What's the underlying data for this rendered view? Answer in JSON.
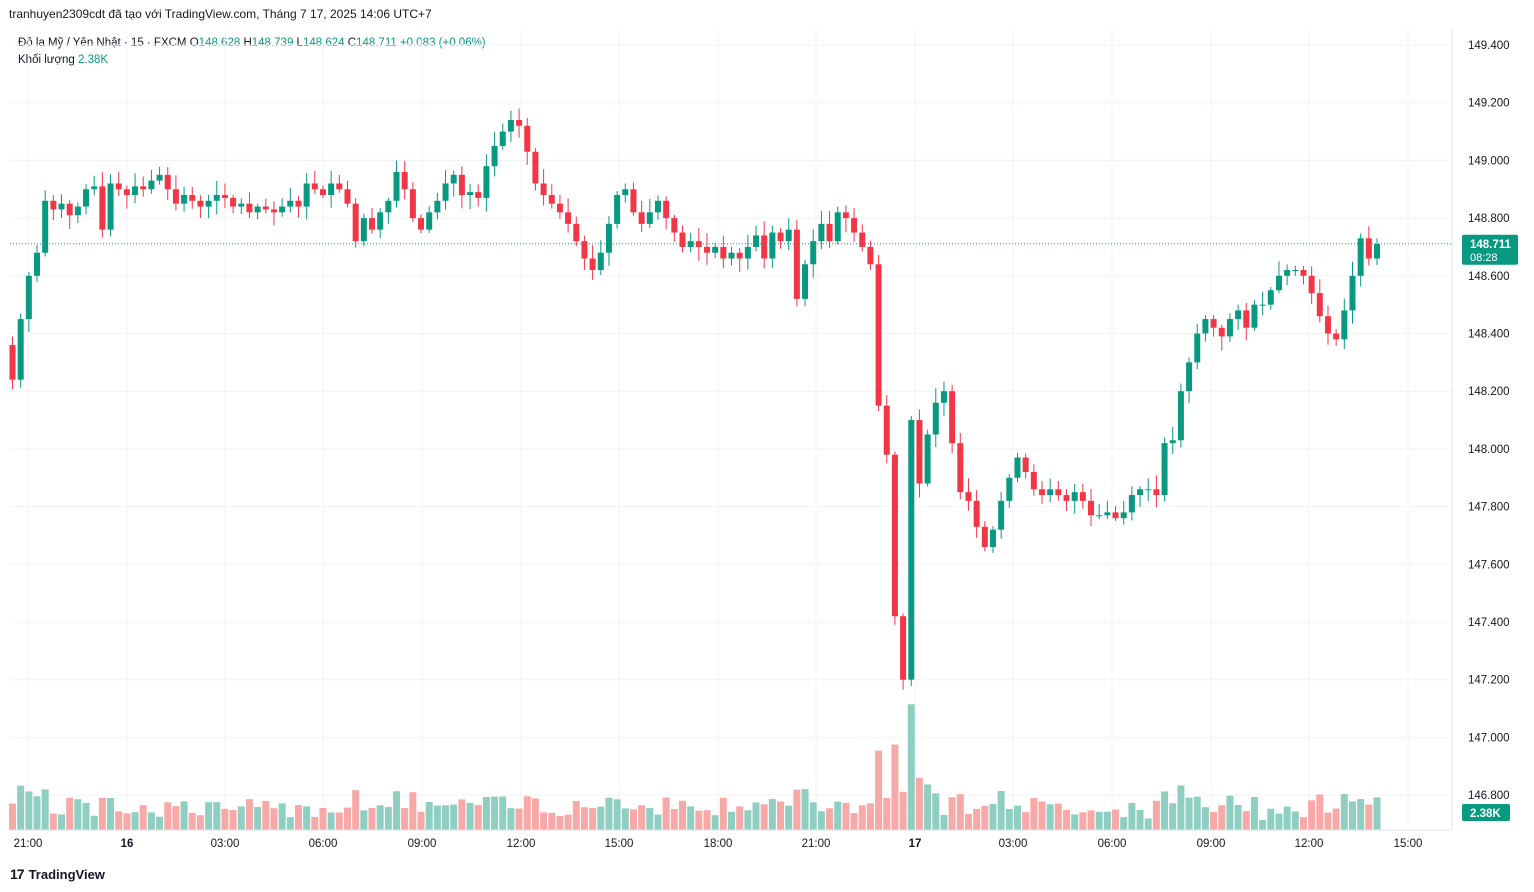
{
  "header": {
    "attribution": "tranhuyen2309cdt đã tạo với TradingView.com, Tháng 7 17, 2025 14:06 UTC+7"
  },
  "legend": {
    "symbol": "Đô la Mỹ / Yên Nhật · 15 · FXCM",
    "o_label": "O",
    "o": "148.628",
    "h_label": "H",
    "h": "148.739",
    "l_label": "L",
    "l": "148.624",
    "c_label": "C",
    "c": "148.711",
    "change": "+0.083 (+0.06%)",
    "volume_label": "Khối lượng",
    "volume_value": "2.38K"
  },
  "price_axis": {
    "ticks": [
      "149.400",
      "149.200",
      "149.000",
      "148.800",
      "148.600",
      "148.400",
      "148.200",
      "148.000",
      "147.800",
      "147.600",
      "147.400",
      "147.200",
      "147.000",
      "146.800"
    ],
    "last_price": "148.711",
    "countdown": "08:28",
    "volume_badge": "2.38K"
  },
  "time_axis": {
    "ticks": [
      "21:00",
      "16",
      "03:00",
      "06:00",
      "09:00",
      "12:00",
      "15:00",
      "18:00",
      "21:00",
      "17",
      "03:00",
      "06:00",
      "09:00",
      "12:00",
      "15:00"
    ]
  },
  "branding": {
    "name": "TradingView"
  },
  "colors": {
    "up": "#089981",
    "down": "#f23645",
    "vol_up": "#8fcfc2",
    "vol_down": "#f7a9a7",
    "grid": "#f0f3fa"
  },
  "chart_data": {
    "type": "candlestick",
    "interval": "15",
    "ylim": [
      146.7,
      149.45
    ],
    "series_closes_approx": [
      148.24,
      148.45,
      148.6,
      148.68,
      148.86,
      148.83,
      148.85,
      148.81,
      148.84,
      148.9,
      148.91,
      148.76,
      148.92,
      148.9,
      148.88,
      148.91,
      148.9,
      148.93,
      148.95,
      148.9,
      148.85,
      148.88,
      148.86,
      148.84,
      148.86,
      148.88,
      148.87,
      148.84,
      148.85,
      148.82,
      148.84,
      148.83,
      148.82,
      148.84,
      148.86,
      148.84,
      148.92,
      148.9,
      148.88,
      148.92,
      148.9,
      148.85,
      148.72,
      148.8,
      148.76,
      148.82,
      148.86,
      148.96,
      148.9,
      148.8,
      148.76,
      148.82,
      148.86,
      148.92,
      148.95,
      148.88,
      148.89,
      148.87,
      148.98,
      149.05,
      149.1,
      149.14,
      149.12,
      149.03,
      148.92,
      148.88,
      148.85,
      148.82,
      148.78,
      148.72,
      148.66,
      148.62,
      148.68,
      148.78,
      148.88,
      148.9,
      148.82,
      148.78,
      148.82,
      148.86,
      148.8,
      148.75,
      148.7,
      148.72,
      148.7,
      148.68,
      148.7,
      148.66,
      148.68,
      148.66,
      148.7,
      148.74,
      148.66,
      148.75,
      148.72,
      148.76,
      148.52,
      148.64,
      148.72,
      148.78,
      148.72,
      148.82,
      148.8,
      148.75,
      148.7,
      148.64,
      148.15,
      147.98,
      147.42,
      147.2,
      148.1,
      147.88,
      148.05,
      148.16,
      148.2,
      148.02,
      147.85,
      147.82,
      147.73,
      147.66,
      147.72,
      147.82,
      147.9,
      147.97,
      147.92,
      147.86,
      147.84,
      147.86,
      147.84,
      147.82,
      147.85,
      147.82,
      147.77,
      147.77,
      147.78,
      147.76,
      147.78,
      147.84,
      147.86,
      147.86,
      147.84,
      148.02,
      148.03,
      148.2,
      148.3,
      148.4,
      148.45,
      148.42,
      148.39,
      148.45,
      148.48,
      148.42,
      148.5,
      148.5,
      148.55,
      148.6,
      148.62,
      148.62,
      148.6,
      148.54,
      148.46,
      148.4,
      148.38,
      148.48,
      148.6,
      148.73,
      148.66,
      148.71
    ]
  }
}
